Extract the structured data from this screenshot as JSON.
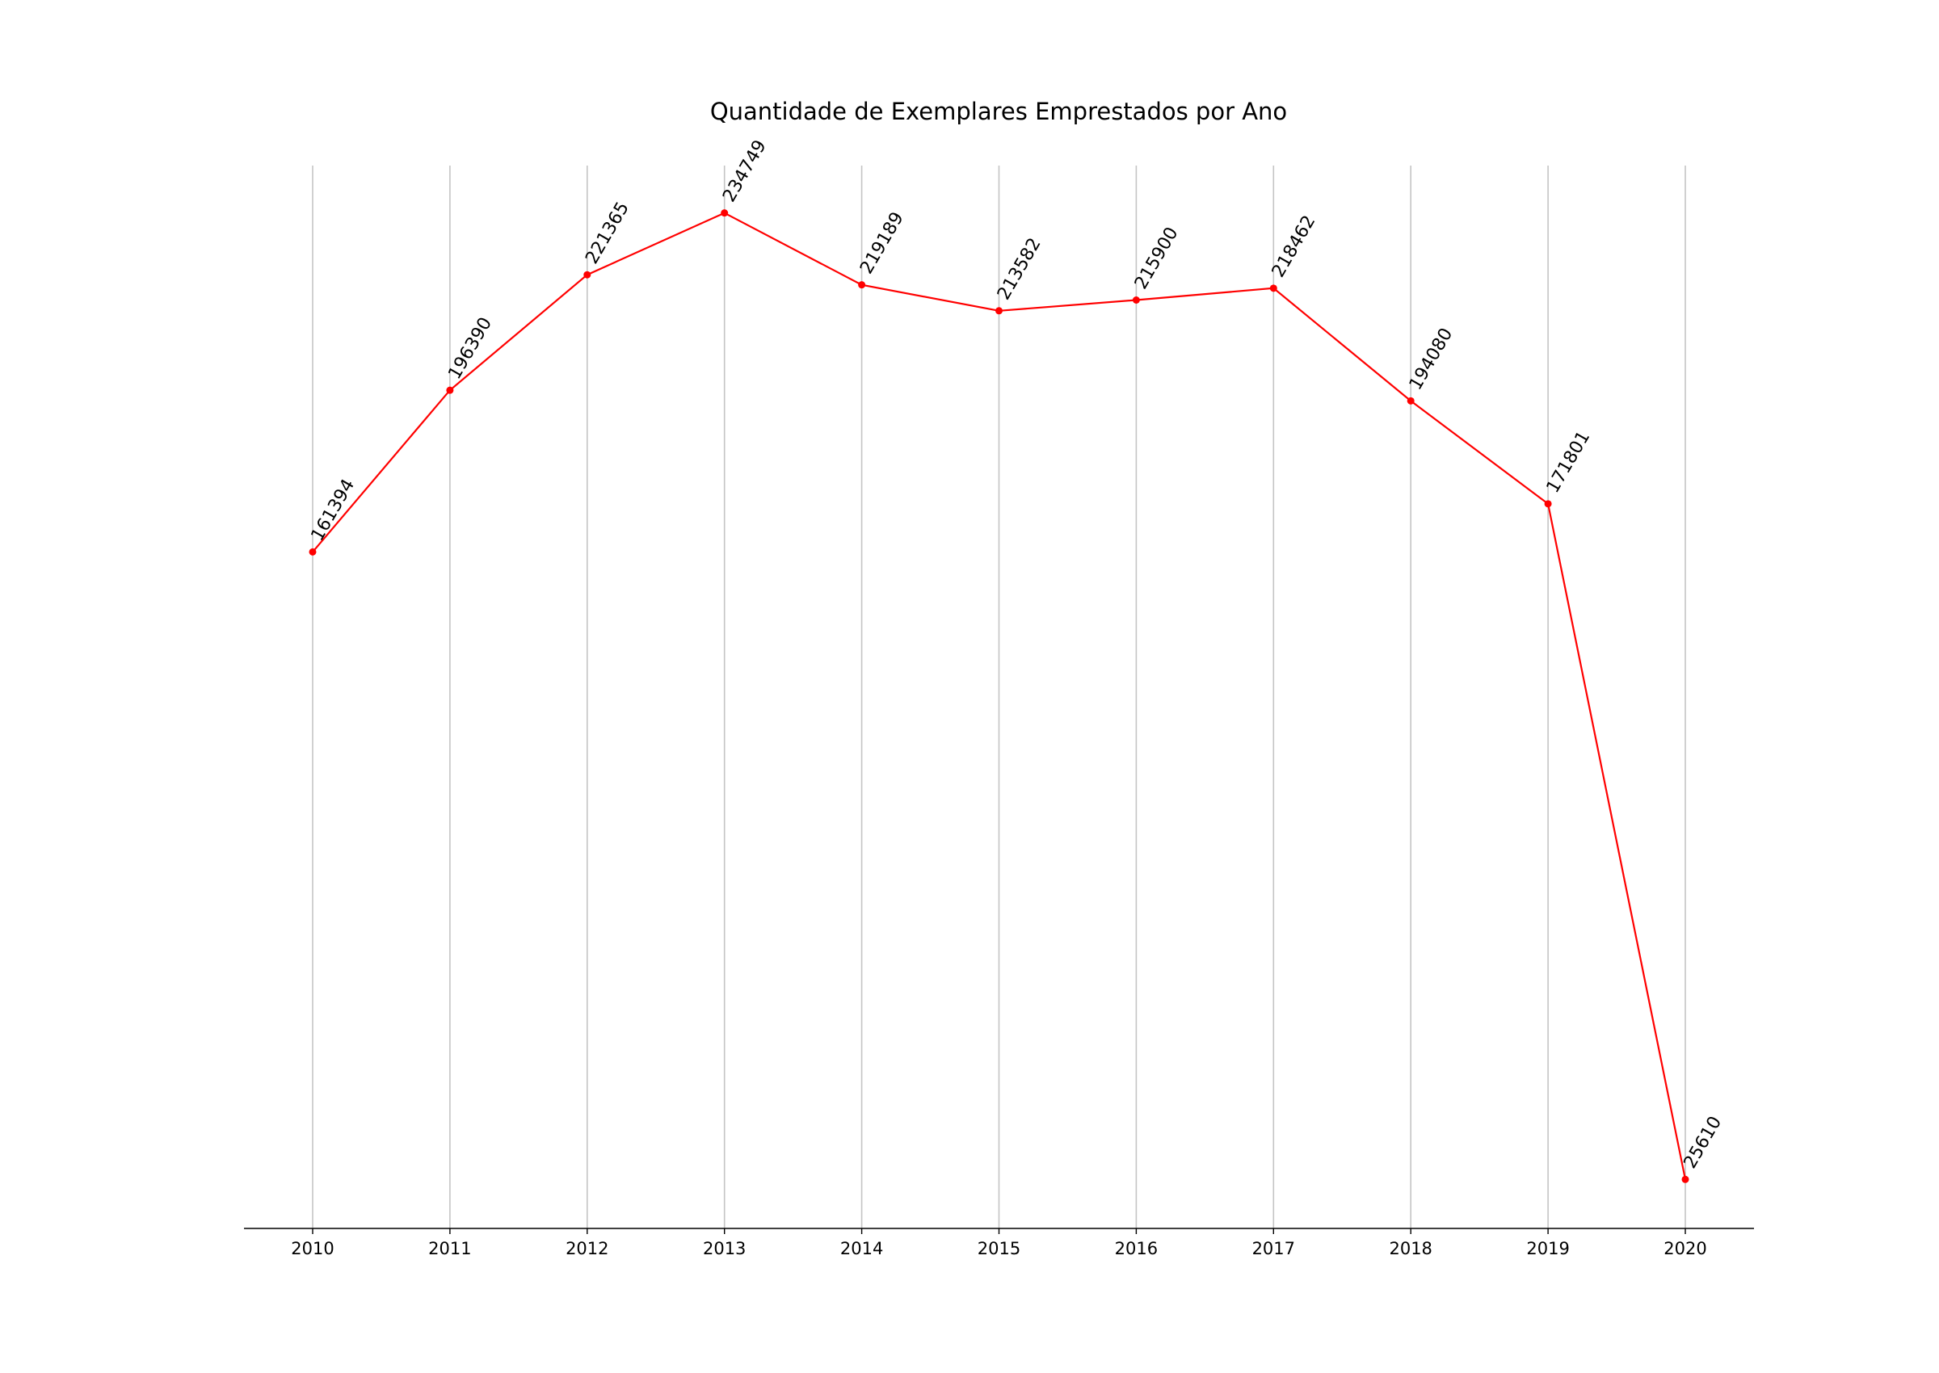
{
  "chart_data": {
    "type": "line",
    "title": "Quantidade de Exemplares Emprestados por Ano",
    "xlabel": "",
    "ylabel": "",
    "categories": [
      "2010",
      "2011",
      "2012",
      "2013",
      "2014",
      "2015",
      "2016",
      "2017",
      "2018",
      "2019",
      "2020"
    ],
    "series": [
      {
        "values": [
          161394,
          196390,
          221365,
          234749,
          219189,
          213582,
          215900,
          218462,
          194080,
          171801,
          25610
        ],
        "color": "#ff0000"
      }
    ],
    "data_labels": [
      "161394",
      "196390",
      "221365",
      "234749",
      "219189",
      "213582",
      "215900",
      "218462",
      "194080",
      "171801",
      "25610"
    ],
    "ylim": [
      15000,
      245000
    ],
    "grid": "vertical",
    "legend": "none"
  }
}
